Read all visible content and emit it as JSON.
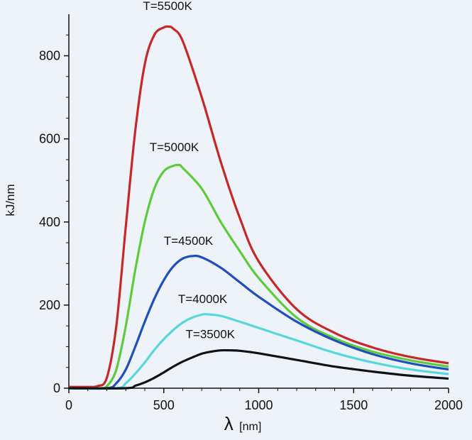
{
  "chart_data": {
    "type": "line",
    "ylabel": "kJ/nm",
    "xlabel_symbol": "λ",
    "xlabel_unit": "[nm]",
    "xlim": [
      0,
      2000
    ],
    "ylim": [
      0,
      900
    ],
    "x_ticks": [
      0,
      500,
      1000,
      1500,
      2000
    ],
    "x_tick_labels": [
      "0",
      "500",
      "1000",
      "1500",
      "2000"
    ],
    "y_ticks": [
      0,
      200,
      400,
      600,
      800
    ],
    "y_tick_labels": [
      "0",
      "200",
      "400",
      "600",
      "800"
    ],
    "grid": false,
    "series": [
      {
        "name": "T=5500K",
        "color": "#c62828",
        "x": [
          0,
          100,
          150,
          200,
          250,
          300,
          350,
          400,
          450,
          500,
          527,
          550,
          600,
          700,
          800,
          900,
          1000,
          1200,
          1400,
          1600,
          1800,
          2000
        ],
        "values": [
          3,
          3,
          5,
          25,
          150,
          390,
          620,
          780,
          850,
          868,
          870,
          865,
          835,
          700,
          545,
          410,
          305,
          190,
          133,
          98,
          75,
          60
        ]
      },
      {
        "name": "T=5000K",
        "color": "#5ecb3a",
        "x": [
          0,
          150,
          200,
          250,
          300,
          350,
          400,
          450,
          500,
          550,
          580,
          600,
          700,
          800,
          900,
          1000,
          1200,
          1400,
          1600,
          1800,
          2000
        ],
        "values": [
          0,
          0,
          5,
          45,
          150,
          285,
          400,
          480,
          522,
          535,
          537,
          530,
          480,
          400,
          330,
          265,
          170,
          120,
          88,
          67,
          52
        ]
      },
      {
        "name": "T=4500K",
        "color": "#1f4fbf",
        "x": [
          0,
          200,
          250,
          300,
          350,
          400,
          450,
          500,
          550,
          600,
          650,
          700,
          800,
          900,
          1000,
          1200,
          1400,
          1600,
          1800,
          2000
        ],
        "values": [
          0,
          0,
          12,
          45,
          100,
          160,
          215,
          260,
          293,
          312,
          318,
          315,
          290,
          255,
          220,
          160,
          115,
          82,
          60,
          45
        ]
      },
      {
        "name": "T=4000K",
        "color": "#55d8dd",
        "x": [
          0,
          250,
          300,
          350,
          400,
          450,
          500,
          550,
          600,
          650,
          700,
          725,
          800,
          900,
          1000,
          1200,
          1400,
          1600,
          1800,
          2000
        ],
        "values": [
          0,
          0,
          12,
          35,
          62,
          92,
          118,
          140,
          158,
          170,
          177,
          178,
          174,
          160,
          145,
          115,
          85,
          62,
          45,
          34
        ]
      },
      {
        "name": "T=3500K",
        "color": "#111111",
        "x": [
          0,
          300,
          350,
          400,
          450,
          500,
          550,
          600,
          650,
          700,
          750,
          800,
          850,
          900,
          1000,
          1200,
          1400,
          1600,
          1800,
          2000
        ],
        "values": [
          0,
          0,
          6,
          14,
          25,
          38,
          52,
          64,
          74,
          83,
          88,
          91,
          91,
          90,
          84,
          68,
          52,
          40,
          30,
          23
        ]
      }
    ],
    "curve_labels": [
      {
        "text": "T=5500K",
        "x": 520,
        "y": 910,
        "color": "#c62828"
      },
      {
        "text": "T=5000K",
        "x": 555,
        "y": 570,
        "color": "#5ecb3a"
      },
      {
        "text": "T=4500K",
        "x": 630,
        "y": 345,
        "color": "#1f4fbf"
      },
      {
        "text": "T=4000K",
        "x": 705,
        "y": 205,
        "color": "#55d8dd"
      },
      {
        "text": "T=3500K",
        "x": 745,
        "y": 120,
        "color": "#111111"
      }
    ]
  }
}
